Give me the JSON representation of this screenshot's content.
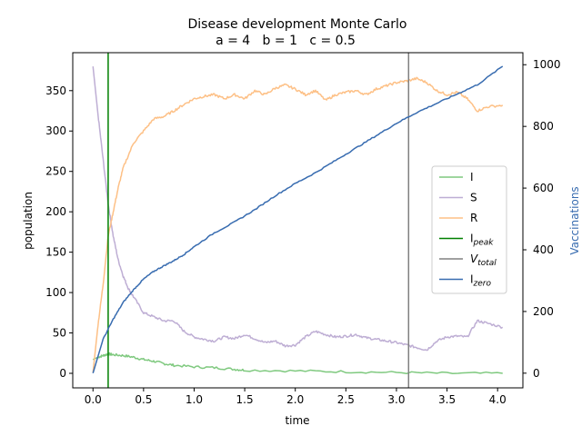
{
  "chart_data": {
    "type": "line",
    "title": "Disease development Monte Carlo",
    "subtitle": "a = 4   b = 1   c = 0.5",
    "xlabel": "time",
    "ylabel": "population",
    "y2label": "Vaccinations",
    "xlim": [
      -0.2,
      4.25
    ],
    "ylim": [
      -18,
      397
    ],
    "y2lim": [
      -47.6,
      1039
    ],
    "xticks": [
      "0.0",
      "0.5",
      "1.0",
      "1.5",
      "2.0",
      "2.5",
      "3.0",
      "3.5",
      "4.0"
    ],
    "yticks": [
      "0",
      "50",
      "100",
      "150",
      "200",
      "250",
      "300",
      "350"
    ],
    "y2ticks": [
      "0",
      "200",
      "400",
      "600",
      "800",
      "1000"
    ],
    "legend_position": "center-right",
    "series": [
      {
        "name": "I",
        "axis": "left",
        "color": "#7fc97f",
        "x": [
          0,
          0.05,
          0.1,
          0.15,
          0.2,
          0.3,
          0.4,
          0.5,
          0.6,
          0.7,
          0.8,
          1.0,
          1.2,
          1.4,
          1.5,
          2.0,
          2.5,
          3.0,
          3.5,
          4.05
        ],
        "y": [
          17,
          20,
          22,
          24,
          23,
          22,
          20,
          17,
          15,
          12,
          10,
          8,
          7,
          5,
          4,
          3,
          2,
          1,
          0,
          0
        ]
      },
      {
        "name": "S",
        "axis": "left",
        "color": "#beaed4",
        "x": [
          0,
          0.05,
          0.1,
          0.15,
          0.2,
          0.25,
          0.3,
          0.35,
          0.4,
          0.5,
          0.6,
          0.7,
          0.8,
          0.9,
          1.0,
          1.1,
          1.2,
          1.3,
          1.4,
          1.5,
          1.6,
          1.7,
          1.8,
          1.9,
          2.0,
          2.1,
          2.2,
          2.3,
          2.4,
          2.5,
          2.6,
          2.7,
          2.8,
          2.9,
          3.0,
          3.1,
          3.2,
          3.3,
          3.4,
          3.5,
          3.6,
          3.7,
          3.8,
          3.9,
          4.05
        ],
        "y": [
          380,
          320,
          265,
          210,
          170,
          140,
          120,
          105,
          95,
          75,
          70,
          65,
          65,
          52,
          45,
          42,
          40,
          45,
          43,
          48,
          43,
          38,
          40,
          34,
          35,
          45,
          52,
          48,
          45,
          46,
          48,
          44,
          42,
          40,
          38,
          35,
          32,
          29,
          40,
          45,
          46,
          45,
          65,
          62,
          57
        ]
      },
      {
        "name": "R",
        "axis": "left",
        "color": "#fdc086",
        "x": [
          0,
          0.05,
          0.1,
          0.15,
          0.2,
          0.25,
          0.3,
          0.4,
          0.5,
          0.6,
          0.7,
          0.8,
          0.9,
          1.0,
          1.1,
          1.2,
          1.3,
          1.4,
          1.5,
          1.6,
          1.7,
          1.8,
          1.9,
          2.0,
          2.1,
          2.2,
          2.3,
          2.4,
          2.5,
          2.6,
          2.7,
          2.8,
          2.9,
          3.0,
          3.1,
          3.2,
          3.3,
          3.4,
          3.5,
          3.6,
          3.7,
          3.8,
          3.9,
          4.05
        ],
        "y": [
          1,
          60,
          110,
          170,
          200,
          230,
          255,
          285,
          300,
          315,
          318,
          325,
          333,
          340,
          343,
          345,
          340,
          345,
          340,
          350,
          345,
          353,
          357,
          352,
          345,
          350,
          338,
          345,
          348,
          350,
          345,
          352,
          356,
          360,
          362,
          365,
          360,
          350,
          345,
          348,
          340,
          325,
          330,
          332
        ]
      },
      {
        "name": "I<sub>peak</sub>",
        "label_main": "I",
        "label_sub": "peak",
        "label_italic": false,
        "kind": "vline",
        "color": "#008000",
        "x": 0.15
      },
      {
        "name": "V<sub>total</sub>",
        "label_main": "V",
        "label_sub": "total",
        "label_italic": true,
        "kind": "vline",
        "color": "#808080",
        "x": 3.12
      },
      {
        "name": "I<sub>zero</sub>",
        "label_main": "I",
        "label_sub": "zero",
        "label_italic": false,
        "axis": "right",
        "color": "#386cb0",
        "x": [
          0,
          0.1,
          0.2,
          0.3,
          0.4,
          0.5,
          0.6,
          0.7,
          0.8,
          0.9,
          1.0,
          1.2,
          1.4,
          1.6,
          1.8,
          2.0,
          2.2,
          2.4,
          2.6,
          2.8,
          3.0,
          3.2,
          3.4,
          3.6,
          3.8,
          4.05
        ],
        "y": [
          0,
          110,
          175,
          230,
          270,
          305,
          330,
          348,
          365,
          385,
          410,
          455,
          490,
          530,
          575,
          615,
          650,
          690,
          730,
          770,
          810,
          845,
          875,
          905,
          935,
          995
        ]
      }
    ]
  }
}
